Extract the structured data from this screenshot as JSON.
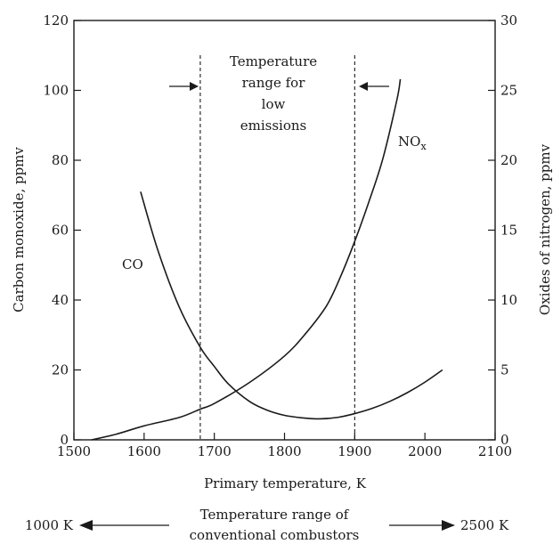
{
  "chart_data": {
    "type": "line",
    "xlabel": "Primary temperature, K",
    "ylabel_left": "Carbon monoxide, ppmv",
    "ylabel_right": "Oxides of nitrogen, ppmv",
    "xlim": [
      1500,
      2100
    ],
    "ylim_left": [
      0,
      120
    ],
    "ylim_right": [
      0,
      30
    ],
    "x_ticks": [
      1500,
      1600,
      1700,
      1800,
      1900,
      2000,
      2100
    ],
    "y_ticks_left": [
      0,
      20,
      40,
      60,
      80,
      100,
      120
    ],
    "y_ticks_right": [
      0,
      5,
      10,
      15,
      20,
      25,
      30
    ],
    "grid": false,
    "series": [
      {
        "name": "CO",
        "axis": "left",
        "x": [
          1595,
          1620,
          1650,
          1680,
          1700,
          1720,
          1750,
          1775,
          1800,
          1825,
          1850,
          1875,
          1900,
          1925,
          1950,
          1975,
          2000,
          2025
        ],
        "y": [
          71,
          54,
          38,
          26.5,
          21,
          16,
          11,
          8.5,
          7,
          6.3,
          6,
          6.4,
          7.5,
          9,
          11,
          13.5,
          16.5,
          20
        ]
      },
      {
        "name": "NO_x",
        "axis": "right",
        "x": [
          1525,
          1560,
          1600,
          1650,
          1680,
          1700,
          1750,
          1800,
          1830,
          1860,
          1880,
          1900,
          1920,
          1940,
          1960,
          1965
        ],
        "y": [
          0,
          0.4,
          1,
          1.6,
          2.2,
          2.6,
          4.1,
          6,
          7.6,
          9.6,
          11.7,
          14.2,
          17,
          20.1,
          24.3,
          25.8
        ]
      }
    ],
    "annotations": {
      "low_emission_text": [
        "Temperature",
        "range for",
        "low",
        "emissions"
      ],
      "low_emission_bounds": [
        1680,
        1900
      ],
      "co_label": "CO",
      "nox_label_main": "NO",
      "nox_label_sub": "x",
      "conventional_text": [
        "Temperature range of",
        "conventional combustors"
      ],
      "conventional_left": "1000 K",
      "conventional_right": "2500 K"
    }
  }
}
